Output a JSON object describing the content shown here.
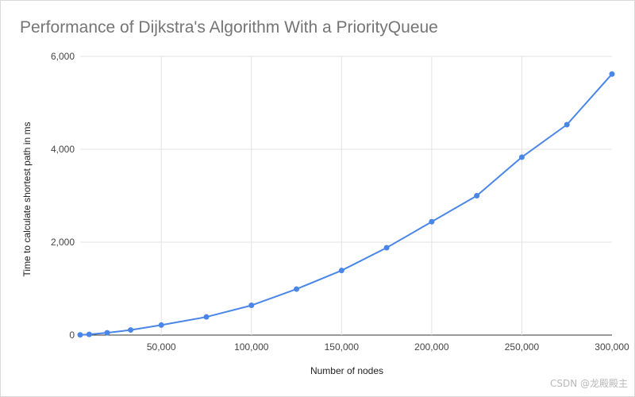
{
  "chart_data": {
    "type": "line",
    "title": "Performance of Dijkstra's Algorithm With a PriorityQueue",
    "xlabel": "Number of nodes",
    "ylabel": "Time to calculate shortest path in ms",
    "xlim": [
      5000,
      300000
    ],
    "ylim": [
      0,
      6000
    ],
    "x_ticks": [
      50000,
      100000,
      150000,
      200000,
      250000,
      300000
    ],
    "x_tick_labels": [
      "50,000",
      "100,000",
      "150,000",
      "200,000",
      "250,000",
      "300,000"
    ],
    "y_ticks": [
      0,
      2000,
      4000,
      6000
    ],
    "y_tick_labels": [
      "0",
      "2,000",
      "4,000",
      "6,000"
    ],
    "grid": true,
    "legend": "none",
    "series": [
      {
        "color": "#4a86e8",
        "x": [
          5000,
          10000,
          20000,
          33000,
          50000,
          75000,
          100000,
          125000,
          150000,
          175000,
          200000,
          225000,
          250000,
          275000,
          300000
        ],
        "y": [
          5,
          15,
          50,
          110,
          215,
          390,
          640,
          990,
          1390,
          1880,
          2440,
          3000,
          3830,
          4530,
          5620
        ]
      }
    ]
  },
  "watermark": "CSDN @龙殿殿主"
}
